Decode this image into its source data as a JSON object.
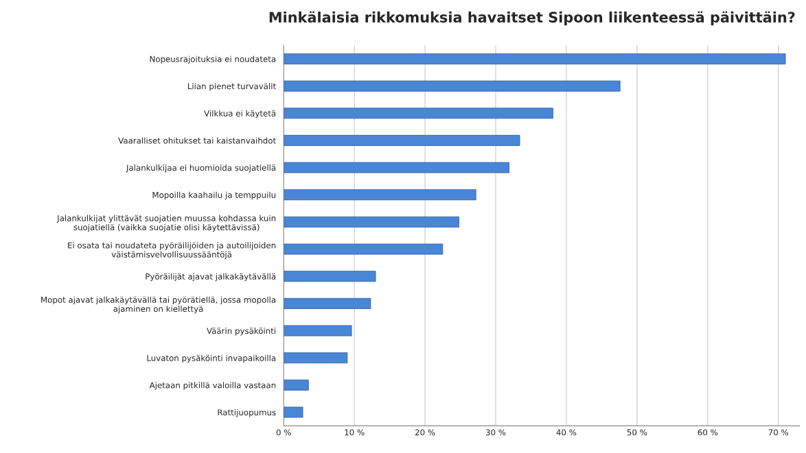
{
  "chart_data": {
    "type": "bar",
    "orientation": "horizontal",
    "title": "Minkälaisia rikkomuksia havaitset Sipoon liikenteessä päivittäin?",
    "categories": [
      "Nopeusrajoituksia ei noudateta",
      "Liian pienet turvavälit",
      "Vilkkua ei käytetä",
      "Vaaralliset ohitukset tai kaistanvaihdot",
      "Jalankulkijaa ei huomioida suojatiellä",
      "Mopoilla kaahailu ja temppuilu",
      "Jalankulkijat ylittävät suojatien muussa kohdassa kuin\nsuojatiellä (vaikka suojatie olisi käytettävissä)",
      "Ei osata tai noudateta pyöräilijöiden ja autoilijoiden\nväistämisvelvollisuussääntöjä",
      "Pyöräilijät ajavat jalkakäytävällä",
      "Mopot ajavat jalkakäytävällä tai pyörätiellä, jossa mopolla\najaminen on kiellettyä",
      "Väärin pysäköinti",
      "Luvaton pysäköinti invapaikoilla",
      "Ajetaan pitkillä valoilla vastaan",
      "Rattijuopumus"
    ],
    "values": [
      71.0,
      47.6,
      38.1,
      33.4,
      31.9,
      27.2,
      24.8,
      22.5,
      13.0,
      12.3,
      9.6,
      9.0,
      3.5,
      2.7
    ],
    "color": "#4a86d6",
    "xlim": [
      0,
      73
    ],
    "xticks": [
      {
        "value": 0,
        "label": "0 %"
      },
      {
        "value": 10,
        "label": "10 %"
      },
      {
        "value": 20,
        "label": "20 %"
      },
      {
        "value": 30,
        "label": "30 %"
      },
      {
        "value": 40,
        "label": "40 %"
      },
      {
        "value": 50,
        "label": "50 %"
      },
      {
        "value": 60,
        "label": "60 %"
      },
      {
        "value": 70,
        "label": "70 %"
      }
    ],
    "grid": "x"
  }
}
